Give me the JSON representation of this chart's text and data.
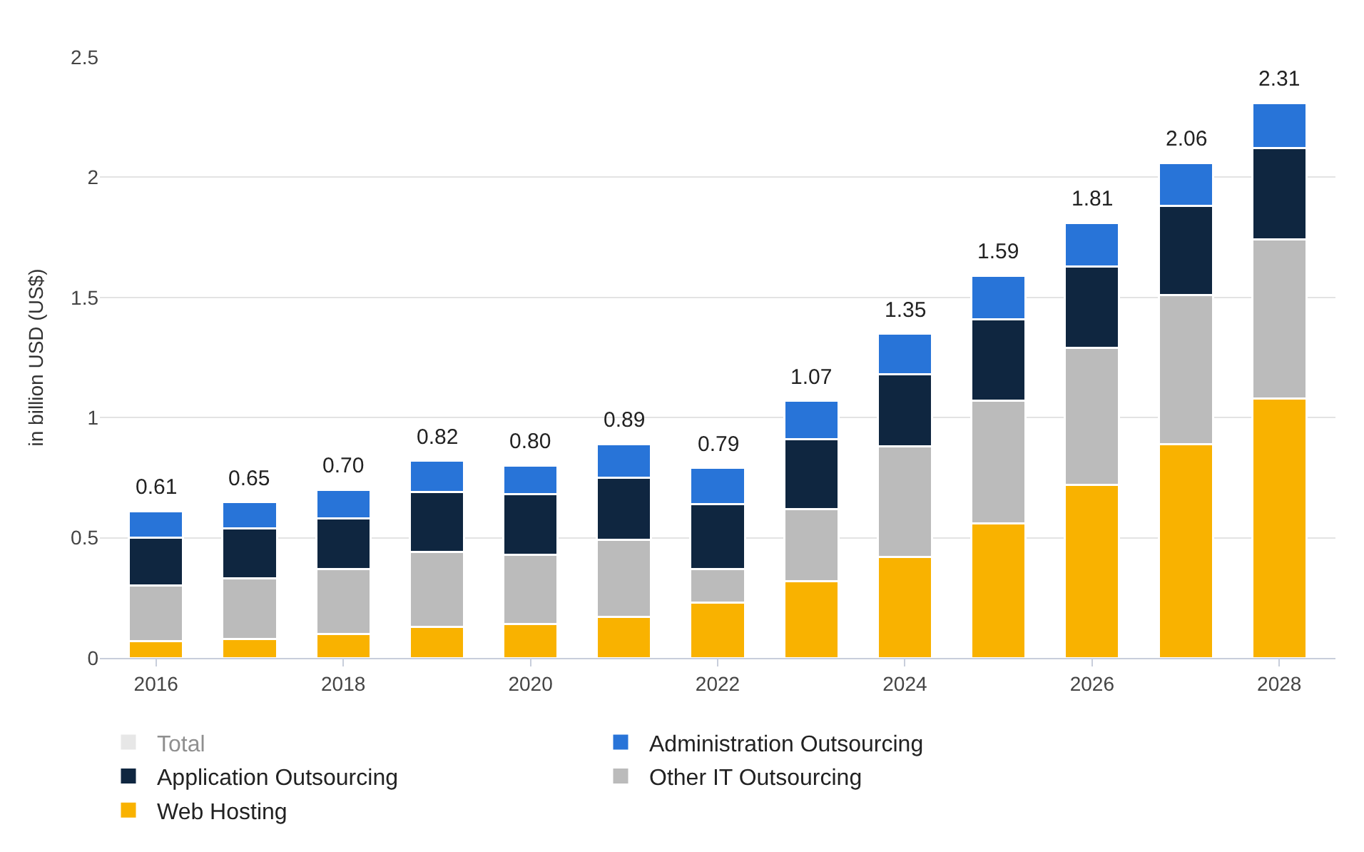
{
  "chart_data": {
    "type": "bar",
    "stacked": true,
    "ylabel": "in billion USD (US$)",
    "x": [
      2016,
      2017,
      2018,
      2019,
      2020,
      2021,
      2022,
      2023,
      2024,
      2025,
      2026,
      2027,
      2028
    ],
    "xlim": [
      2015.4,
      2028.6
    ],
    "xticks": [
      2016,
      2018,
      2020,
      2022,
      2024,
      2026,
      2028
    ],
    "ylim": [
      0,
      2.5
    ],
    "yticks": [
      0,
      0.5,
      1,
      1.5,
      2,
      2.5
    ],
    "grid": "y",
    "legend": "bottom",
    "series": [
      {
        "name": "Web Hosting",
        "color": "#f9b200",
        "values": [
          0.07,
          0.08,
          0.1,
          0.13,
          0.14,
          0.17,
          0.23,
          0.32,
          0.42,
          0.56,
          0.72,
          0.89,
          1.08
        ]
      },
      {
        "name": "Other IT Outsourcing",
        "color": "#bbbbbb",
        "values": [
          0.23,
          0.25,
          0.27,
          0.31,
          0.29,
          0.32,
          0.14,
          0.3,
          0.46,
          0.51,
          0.57,
          0.62,
          0.66
        ]
      },
      {
        "name": "Application Outsourcing",
        "color": "#0f2640",
        "values": [
          0.2,
          0.21,
          0.21,
          0.25,
          0.25,
          0.26,
          0.27,
          0.29,
          0.3,
          0.34,
          0.34,
          0.37,
          0.38
        ]
      },
      {
        "name": "Administration Outsourcing",
        "color": "#2874d8",
        "values": [
          0.11,
          0.11,
          0.12,
          0.13,
          0.12,
          0.14,
          0.15,
          0.16,
          0.17,
          0.18,
          0.18,
          0.18,
          0.19
        ]
      },
      {
        "name": "Total",
        "color": "#d0d0d0",
        "values": [
          null,
          null,
          null,
          null,
          null,
          null,
          null,
          null,
          null,
          null,
          null,
          null,
          null
        ]
      }
    ],
    "totals": [
      "0.61",
      "0.65",
      "0.70",
      "0.82",
      "0.80",
      "0.89",
      "0.79",
      "1.07",
      "1.35",
      "1.59",
      "1.81",
      "2.06",
      "2.31"
    ]
  }
}
